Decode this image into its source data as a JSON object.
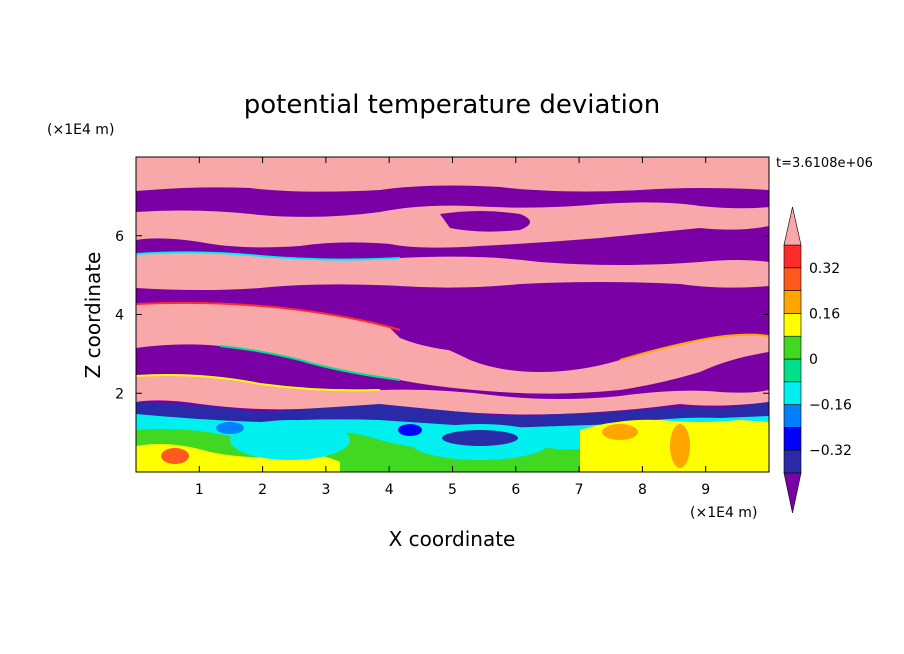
{
  "chart_data": {
    "type": "heatmap",
    "title": "potential temperature deviation",
    "xlabel": "X coordinate",
    "ylabel": "Z coordinate",
    "x_unit": "(×1E4 m)",
    "y_unit": "(×1E4 m)",
    "time_label": "t=3.6108e+06",
    "xlim": [
      0,
      10
    ],
    "ylim": [
      0,
      8
    ],
    "x_ticks": [
      "1",
      "2",
      "3",
      "4",
      "5",
      "6",
      "7",
      "8",
      "9"
    ],
    "y_ticks": [
      "2",
      "4",
      "6"
    ],
    "colorbar": {
      "levels": [
        -0.4,
        -0.32,
        -0.24,
        -0.16,
        -0.08,
        0,
        0.08,
        0.16,
        0.24,
        0.32,
        0.4
      ],
      "tick_labels": [
        "0.32",
        "0.16",
        "0",
        "−0.16",
        "−0.32"
      ],
      "extend": "both",
      "colors": [
        "#7a00a6",
        "#2a2aa8",
        "#0000ff",
        "#0080ff",
        "#00f0f0",
        "#00e08a",
        "#40d820",
        "#ffff00",
        "#ffa500",
        "#ff5a1e",
        "#ff2a2a",
        "#f8a8a8"
      ]
    },
    "grid": false
  }
}
